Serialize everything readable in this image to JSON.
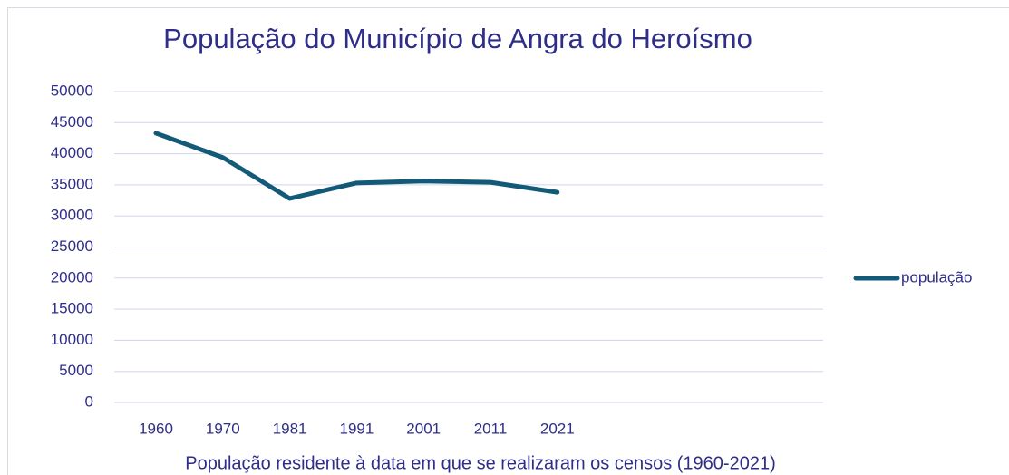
{
  "chart_data": {
    "type": "line",
    "title": "População do Município de Angra do Heroísmo",
    "x_label": "População residente à data em que se realizaram os censos (1960-2021)",
    "categories": [
      "1960",
      "1970",
      "1981",
      "1991",
      "2001",
      "2011",
      "2021"
    ],
    "series": [
      {
        "name": "população",
        "color": "#135a78",
        "values": [
          43300,
          39400,
          32800,
          35300,
          35600,
          35400,
          33800
        ]
      }
    ],
    "ylim": [
      0,
      50000
    ],
    "yticks": [
      0,
      5000,
      10000,
      15000,
      20000,
      25000,
      30000,
      35000,
      40000,
      45000,
      50000
    ],
    "grid": true,
    "legend": "right"
  }
}
